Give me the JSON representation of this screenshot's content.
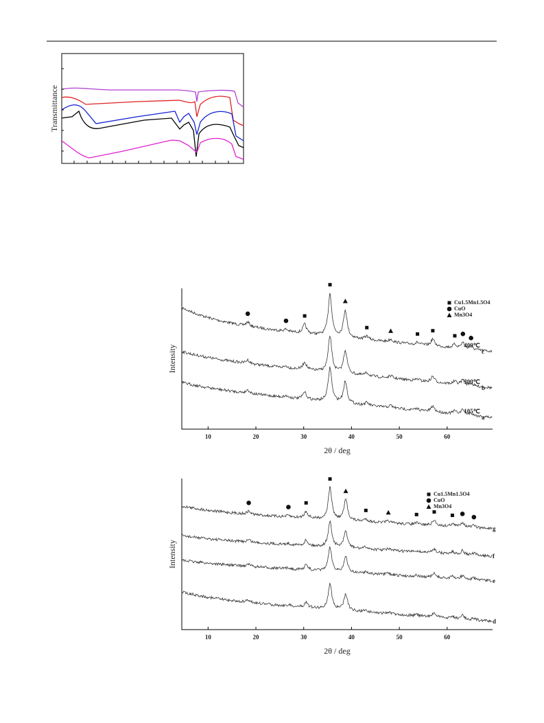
{
  "figures": [
    {
      "ylabel": "Transmittance"
    },
    {
      "type": "xrd",
      "xlabel": "2θ / deg",
      "ylabel": "Intensity",
      "xlim": [
        4.5,
        69.5
      ],
      "xticks": [
        10,
        20,
        30,
        40,
        50,
        60
      ],
      "legend": [
        {
          "marker": "square",
          "label": "Cu1.5Mn1.5O4"
        },
        {
          "marker": "circle",
          "label": "CuO"
        },
        {
          "marker": "triangle",
          "label": "Mn3O4"
        }
      ],
      "curves": [
        {
          "label": "400℃",
          "tag": "c"
        },
        {
          "label": "300℃",
          "tag": "b"
        },
        {
          "label": "105℃",
          "tag": "a"
        }
      ],
      "peak_markers": [
        {
          "x": 18.3,
          "phase": "circle"
        },
        {
          "x": 26.3,
          "phase": "circle"
        },
        {
          "x": 30.2,
          "phase": "square"
        },
        {
          "x": 35.5,
          "phase": "square"
        },
        {
          "x": 38.7,
          "phase": "triangle"
        },
        {
          "x": 43.2,
          "phase": "square"
        },
        {
          "x": 48.2,
          "phase": "triangle"
        },
        {
          "x": 53.8,
          "phase": "square"
        },
        {
          "x": 57.0,
          "phase": "square"
        },
        {
          "x": 61.6,
          "phase": "square"
        },
        {
          "x": 63.3,
          "phase": "circle"
        },
        {
          "x": 65.0,
          "phase": "circle"
        }
      ]
    },
    {
      "type": "xrd",
      "xlabel": "2θ / deg",
      "ylabel": "Intensity",
      "xlim": [
        4.5,
        69.5
      ],
      "xticks": [
        10,
        20,
        30,
        40,
        50,
        60
      ],
      "legend": [
        {
          "marker": "square",
          "label": "Cu1.5Mn1.5O4"
        },
        {
          "marker": "circle",
          "label": "CuO"
        },
        {
          "marker": "triangle",
          "label": "Mn3O4"
        }
      ],
      "curves": [
        {
          "tag": "g"
        },
        {
          "tag": "f"
        },
        {
          "tag": "e"
        },
        {
          "tag": "d"
        }
      ],
      "peak_markers": [
        {
          "x": 18.5,
          "phase": "circle"
        },
        {
          "x": 26.8,
          "phase": "circle"
        },
        {
          "x": 30.5,
          "phase": "square"
        },
        {
          "x": 35.5,
          "phase": "square"
        },
        {
          "x": 38.8,
          "phase": "triangle"
        },
        {
          "x": 43.0,
          "phase": "square"
        },
        {
          "x": 47.7,
          "phase": "triangle"
        },
        {
          "x": 53.6,
          "phase": "square"
        },
        {
          "x": 57.3,
          "phase": "square"
        },
        {
          "x": 61.1,
          "phase": "square"
        },
        {
          "x": 63.2,
          "phase": "circle"
        },
        {
          "x": 65.6,
          "phase": "circle"
        }
      ]
    }
  ]
}
